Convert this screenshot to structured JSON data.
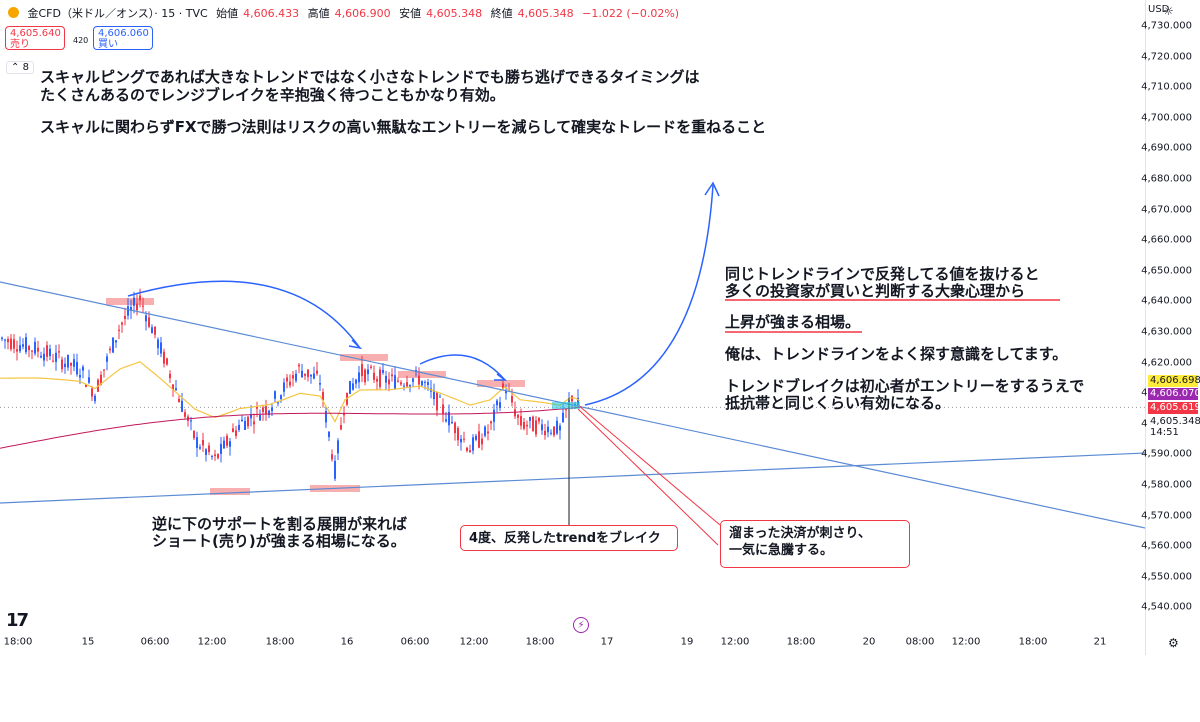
{
  "header": {
    "symbol": "金CFD（米ドル／オンス）· 15 · TVC",
    "open_label": "始値",
    "open_value": "4,606.433",
    "high_label": "高値",
    "high_value": "4,606.900",
    "low_label": "安値",
    "low_value": "4,605.348",
    "close_label": "終値",
    "close_value": "4,605.348",
    "change": "−1.022 (−0.02%)"
  },
  "trade": {
    "sell_price": "4,605.640",
    "sell_label": "売り",
    "spread": "420",
    "buy_price": "4,606.060",
    "buy_label": "買い",
    "indicator_count": "8"
  },
  "currency": "USD",
  "price_axis": {
    "labels": [
      "4,730.000",
      "4,720.000",
      "4,710.000",
      "4,700.000",
      "4,690.000",
      "4,680.000",
      "4,670.000",
      "4,660.000",
      "4,650.000",
      "4,640.000",
      "4,630.000",
      "4,620.000",
      "4,610.000",
      "4,600.000",
      "4,590.000",
      "4,580.000",
      "4,570.000",
      "4,560.000",
      "4,550.000",
      "4,540.000"
    ],
    "tags": [
      {
        "text": "4,606.698",
        "color": "#ffeb3b",
        "fg": "#131722"
      },
      {
        "text": "4,606.070",
        "color": "#9c27b0",
        "fg": "#ffffff"
      },
      {
        "text": "4,605.619",
        "color": "#f23645",
        "fg": "#ffffff"
      },
      {
        "text": "4,605.348",
        "color": "#ffffff",
        "fg": "#131722"
      },
      {
        "text": "14:51",
        "color": "#ffffff",
        "fg": "#131722"
      }
    ]
  },
  "time_axis": [
    "18:00",
    "15",
    "06:00",
    "12:00",
    "18:00",
    "16",
    "06:00",
    "12:00",
    "18:00",
    "17",
    "19",
    "12:00",
    "18:00",
    "20",
    "08:00",
    "12:00",
    "18:00",
    "21"
  ],
  "notes": {
    "top_line1": "スキャルピングであれば大きなトレンドではなく小さなトレンドでも勝ち逃げできるタイミングは",
    "top_line2": "たくさんあるのでレンジブレイクを辛抱強く待つこともかなり有効。",
    "top_line3": "スキャルに関わらずFXで勝つ法則はリスクの高い無駄なエントリーを減らして確実なトレードを重ねること",
    "right1_line1": "同じトレンドラインで反発してる値を抜けると",
    "right1_line2": "多くの投資家が買いと判断する大衆心理から",
    "right2": "上昇が強まる相場。",
    "right3": "俺は、トレンドラインをよく探す意識をしてます。",
    "right4_line1": "トレンドブレイクは初心者がエントリーをするうえで",
    "right4_line2": "抵抗帯と同じくらい有効になる。",
    "bottom_left_line1": "逆に下のサポートを割る展開が来れば",
    "bottom_left_line2": "ショート(売り)が強まる相場になる。",
    "box_break": "4度、反発したtrendをブレイク",
    "box_surge_line1": "溜まった決済が刺さり、",
    "box_surge_line2": "一気に急騰する。"
  },
  "colors": {
    "bull": "#2962ff",
    "bear": "#f23645",
    "trendline": "#5b8bd4",
    "ma_yellow": "#f5c542",
    "ma_red": "#c2185b",
    "highlight": "#f7a1a1"
  }
}
